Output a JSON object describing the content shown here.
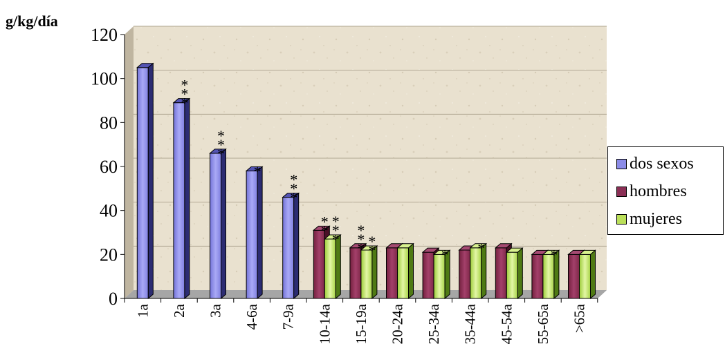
{
  "chart_data": {
    "type": "bar",
    "ylabel": "g/kg/día",
    "ylim": [
      0,
      120
    ],
    "yticks": [
      "0",
      "20",
      "40",
      "60",
      "80",
      "100",
      "120"
    ],
    "categories": [
      "1a",
      "2a",
      "3a",
      "4-6a",
      "7-9a",
      "10-14a",
      "15-19a",
      "20-24a",
      "25-34a",
      "35-44a",
      "45-54a",
      "55-65a",
      ">65a"
    ],
    "series": [
      {
        "name": "dos sexos",
        "color": "#8c8ce8",
        "values": [
          105,
          89,
          66,
          58,
          46,
          null,
          null,
          null,
          null,
          null,
          null,
          null,
          null
        ],
        "annotations": [
          "",
          "***",
          "***",
          "*",
          "***",
          "",
          "",
          "",
          "",
          "",
          "",
          "",
          ""
        ]
      },
      {
        "name": "hombres",
        "color": "#8b2f55",
        "values": [
          null,
          null,
          null,
          null,
          null,
          31,
          23,
          23,
          21,
          22,
          23,
          20,
          20
        ],
        "annotations": [
          "",
          "",
          "",
          "",
          "",
          "**",
          "***",
          "",
          "",
          "",
          "",
          "",
          ""
        ]
      },
      {
        "name": "mujeres",
        "color": "#bbe05a",
        "values": [
          null,
          null,
          null,
          null,
          null,
          27,
          22,
          23,
          20,
          23,
          21,
          20,
          20
        ],
        "annotations": [
          "",
          "",
          "",
          "",
          "",
          "***",
          "**",
          "",
          "*",
          "*",
          "",
          "*",
          ""
        ]
      }
    ],
    "grid": true,
    "legend_position": "right"
  }
}
